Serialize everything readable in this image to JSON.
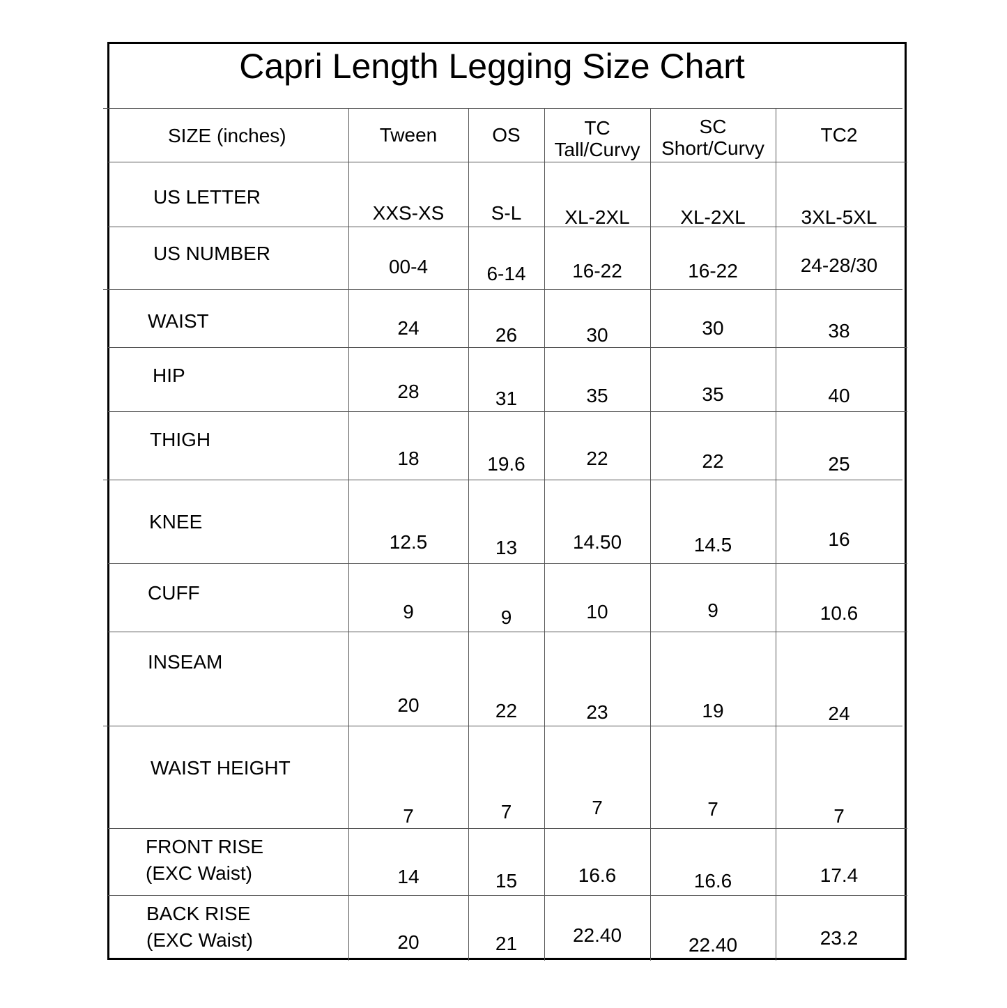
{
  "title": "Capri Length Legging Size Chart",
  "header": {
    "label": "SIZE (inches)",
    "columns": [
      [
        "Tween"
      ],
      [
        "OS"
      ],
      [
        "TC",
        "Tall/Curvy"
      ],
      [
        "SC",
        "Short/Curvy"
      ],
      [
        "TC2"
      ]
    ]
  },
  "rows": [
    {
      "label": [
        "US LETTER"
      ],
      "values": [
        "XXS-XS",
        "S-L",
        "XL-2XL",
        "XL-2XL",
        "3XL-5XL"
      ]
    },
    {
      "label": [
        "US NUMBER"
      ],
      "values": [
        "00-4",
        "6-14",
        "16-22",
        "16-22",
        "24-28/30"
      ]
    },
    {
      "label": [
        "WAIST"
      ],
      "values": [
        "24",
        "26",
        "30",
        "30",
        "38"
      ]
    },
    {
      "label": [
        "HIP"
      ],
      "values": [
        "28",
        "31",
        "35",
        "35",
        "40"
      ]
    },
    {
      "label": [
        "THIGH"
      ],
      "values": [
        "18",
        "19.6",
        "22",
        "22",
        "25"
      ]
    },
    {
      "label": [
        "KNEE"
      ],
      "values": [
        "12.5",
        "13",
        "14.50",
        "14.5",
        "16"
      ]
    },
    {
      "label": [
        "CUFF"
      ],
      "values": [
        "9",
        "9",
        "10",
        "9",
        "10.6"
      ]
    },
    {
      "label": [
        "INSEAM"
      ],
      "values": [
        "20",
        "22",
        "23",
        "19",
        "24"
      ]
    },
    {
      "label": [
        "WAIST HEIGHT"
      ],
      "values": [
        "7",
        "7",
        "7",
        "7",
        "7"
      ]
    },
    {
      "label": [
        "FRONT RISE",
        "(EXC Waist)"
      ],
      "values": [
        "14",
        "15",
        "16.6",
        "16.6",
        "17.4"
      ]
    },
    {
      "label": [
        "BACK RISE",
        "(EXC Waist)"
      ],
      "values": [
        "20",
        "21",
        "22.40",
        "22.40",
        "23.2"
      ]
    }
  ]
}
